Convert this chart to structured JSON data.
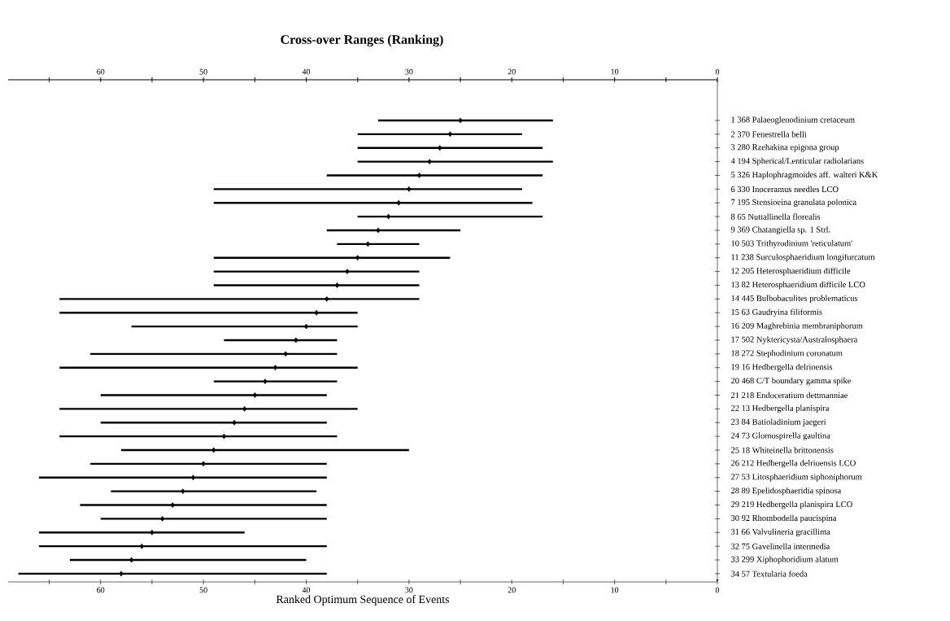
{
  "chart_data": {
    "type": "scatter",
    "orientation": "horizontal",
    "title": "Cross-over Ranges (Ranking)",
    "xlabel": "Ranked Optimum Sequence of Events",
    "categories": [
      "1 368 Palaeoglenodinium cretaceum",
      "2 370 Fenestrella belli",
      "3 280 Rzehakina epigona group",
      "4 194 Spherical/Lenticular radiolarians",
      "5 326 Haplophragmoides aff. walteri K&K",
      "6 330 Inoceramus needles LCO",
      "7 195 Stensioeina granulata polonica",
      "8 65 Nuttallinella florealis",
      "9 369 Chatangiella sp. 1 Strl.",
      "10 503 Trithyrodinium 'reticulatum'",
      "11 238 Surculosphaeridium longifurcatum",
      "12 205 Heterosphaeridium difficile",
      "13 82 Heterosphaeridium difficile LCO",
      "14 445 Bulbobaculites problematicus",
      "15 63 Gaudryina filiformis",
      "16 209 Maghrebinia membraniphorum",
      "17 502 Nyktericysta/Australosphaera",
      "18 272 Stephodinium coronatum",
      "19 16 Hedbergella delrioensis",
      "20 468 C/T boundary gamma spike",
      "21 218 Endoceratium dettmanniae",
      "22 13 Hedbergella planispira",
      "23 84 Batioladinium jaegeri",
      "24 73 Glomospirella gaultina",
      "25 18 Whiteinella brittonensis",
      "26 212 Hedbergella delrioensis LCO",
      "27 53 Litosphaeridium siphoniphorum",
      "28 89 Epelidosphaeridia spinosa",
      "29 219 Hedbergella planispira LCO",
      "30 92 Rhombodella paucispina",
      "31 66 Valvulineria gracillima",
      "32 75 Gavelinella intermedia",
      "33 299 Xiphophoridium alatum",
      "34 57 Textularia foeda"
    ],
    "values": [
      25,
      26,
      27,
      28,
      29,
      30,
      31,
      32,
      33,
      34,
      35,
      36,
      37,
      38,
      39,
      40,
      41,
      42,
      43,
      44,
      45,
      46,
      47,
      48,
      49,
      50,
      51,
      52,
      53,
      54,
      55,
      56,
      57,
      58
    ],
    "errors": [
      [
        16,
        33
      ],
      [
        19,
        35
      ],
      [
        17,
        35
      ],
      [
        16,
        35
      ],
      [
        17,
        38
      ],
      [
        19,
        49
      ],
      [
        18,
        49
      ],
      [
        17,
        35
      ],
      [
        25,
        38
      ],
      [
        29,
        37
      ],
      [
        26,
        49
      ],
      [
        29,
        49
      ],
      [
        29,
        49
      ],
      [
        29,
        64
      ],
      [
        35,
        64
      ],
      [
        35,
        57
      ],
      [
        37,
        48
      ],
      [
        37,
        61
      ],
      [
        35,
        64
      ],
      [
        37,
        49
      ],
      [
        38,
        60
      ],
      [
        35,
        64
      ],
      [
        38,
        60
      ],
      [
        37,
        64
      ],
      [
        30,
        58
      ],
      [
        38,
        61
      ],
      [
        38,
        66
      ],
      [
        39,
        59
      ],
      [
        38,
        62
      ],
      [
        38,
        60
      ],
      [
        46,
        66
      ],
      [
        38,
        66
      ],
      [
        40,
        63
      ],
      [
        38,
        68
      ]
    ],
    "color": "#000000",
    "marker": "diamond",
    "xlim": [
      69,
      0
    ],
    "xticks": [
      0,
      {
        "value": 5,
        "label": null
      },
      10,
      {
        "value": 15,
        "label": null
      },
      20,
      {
        "value": 25,
        "label": null
      },
      30,
      {
        "value": 35,
        "label": null
      },
      40,
      {
        "value": 45,
        "label": null
      },
      50,
      {
        "value": 55,
        "label": null
      },
      60,
      {
        "value": 65,
        "label": null
      }
    ],
    "x2lim": [
      69,
      0
    ],
    "x2ticks": [
      0,
      {
        "value": 5,
        "label": null
      },
      10,
      {
        "value": 15,
        "label": null
      },
      20,
      {
        "value": 25,
        "label": null
      },
      30,
      {
        "value": 35,
        "label": null
      },
      40,
      {
        "value": 45,
        "label": null
      },
      50,
      {
        "value": 55,
        "label": null
      },
      60,
      {
        "value": 65,
        "label": null
      }
    ],
    "grid": false
  }
}
